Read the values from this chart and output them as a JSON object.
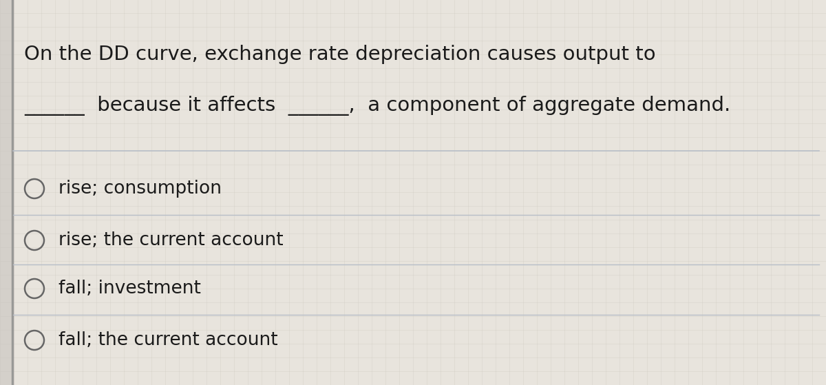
{
  "bg_color": "#d4d0ca",
  "content_bg": "#e8e4dd",
  "left_border_color": "#8a8a8a",
  "line1": "On the DD curve, exchange rate depreciation causes output to",
  "line2": "______  because it affects  ______,  a component of aggregate demand.",
  "options": [
    "rise; consumption",
    "rise; the current account",
    "fall; investment",
    "fall; the current account"
  ],
  "text_color": "#1a1a1a",
  "divider_color": "#b8bec8",
  "circle_edge_color": "#666666",
  "font_size_question": 21,
  "font_size_options": 19,
  "fig_width": 12.0,
  "fig_height": 5.59,
  "dpi": 100
}
